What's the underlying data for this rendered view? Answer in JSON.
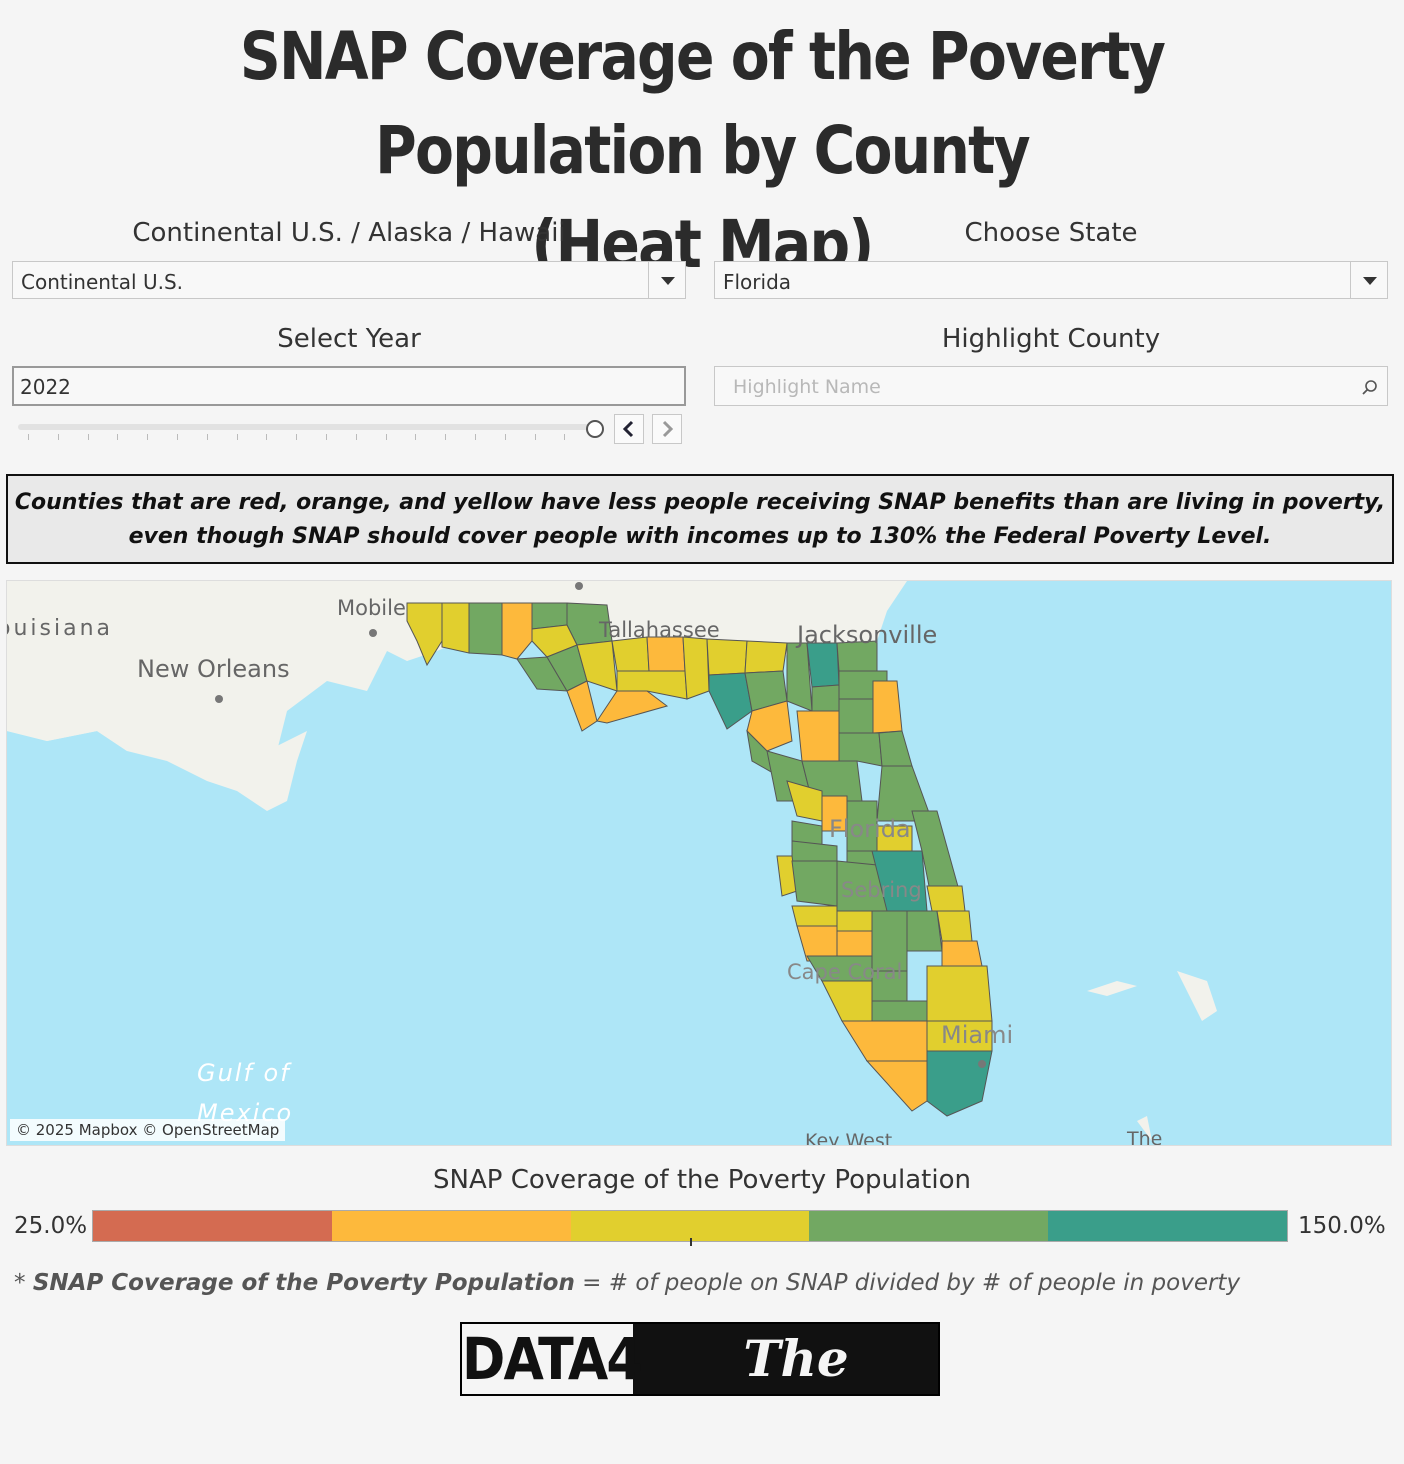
{
  "title": {
    "line1": "SNAP Coverage of the Poverty Population by County",
    "line2": "(Heat Map)"
  },
  "controls": {
    "region": {
      "label": "Continental U.S. / Alaska / Hawaii",
      "value": "Continental U.S."
    },
    "state": {
      "label": "Choose State",
      "value": "Florida"
    },
    "year": {
      "label": "Select Year",
      "value": "2022",
      "prev": "<",
      "next": ">"
    },
    "county": {
      "label": "Highlight County",
      "placeholder": "Highlight Name"
    }
  },
  "note": "Counties that are red, orange, and yellow have less people receiving SNAP benefits than are living in poverty, even though SNAP should cover people with incomes up to 130% the Federal Poverty Level.",
  "map": {
    "attribution": "© 2025 Mapbox © OpenStreetMap",
    "labels": {
      "louisiana": "ouisiana",
      "new_orleans": "New Orleans",
      "mobile": "Mobile",
      "tallahassee": "Tallahassee",
      "jacksonville": "Jacksonville",
      "florida": "Florida",
      "sebring": "Sebring",
      "cape_coral": "Cape Coral",
      "miami": "Miami",
      "key_west": "Key West",
      "the": "The",
      "gulf1": "Gulf of",
      "gulf2": "Mexico"
    },
    "colors": {
      "water": "#aee6f7",
      "land": "#f2f2ec",
      "outline": "#555555"
    }
  },
  "legend": {
    "title": "SNAP Coverage of the Poverty Population",
    "min": "25.0%",
    "max": "150.0%",
    "colors": [
      "#d46b51",
      "#fdb93c",
      "#e1cf2e",
      "#72a862",
      "#3a9e8a"
    ]
  },
  "footnote": {
    "term": "SNAP Coverage of the Poverty Population",
    "rest": " = # of people on SNAP divided by # of people in poverty",
    "prefix": "* "
  },
  "logo": {
    "left": "DATA4",
    "right": "The People"
  }
}
